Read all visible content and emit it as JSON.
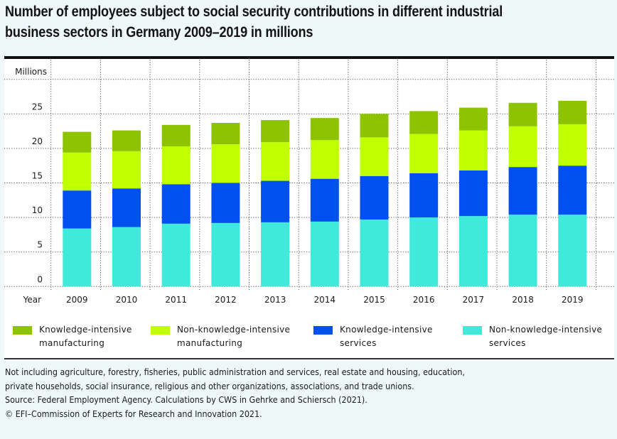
{
  "chart_data": {
    "type": "bar",
    "stacked": true,
    "title": "Number of employees subject to social security contributions in different industrial business sectors in Germany 2009–2019 in millions",
    "title_lines": [
      "Number of employees subject to social security contributions in different industrial",
      "business sectors in Germany 2009–2019 in millions"
    ],
    "ylabel": "Millions",
    "xlabel": "Year",
    "ylim": [
      0,
      30
    ],
    "yticks": [
      0,
      5,
      10,
      15,
      20,
      25
    ],
    "ytick_labels": [
      "0",
      "5",
      "10",
      "15",
      "20",
      "25"
    ],
    "grid": true,
    "legend_position": "bottom",
    "categories": [
      "2009",
      "2010",
      "2011",
      "2012",
      "2013",
      "2014",
      "2015",
      "2016",
      "2017",
      "2018",
      "2019"
    ],
    "series": [
      {
        "name": "Non-knowledge-intensive services",
        "legend_lines": [
          "Non-knowledge-intensive",
          "services"
        ],
        "color": "#40eada",
        "values": [
          8.4,
          8.6,
          9.1,
          9.2,
          9.3,
          9.4,
          9.7,
          10.0,
          10.2,
          10.4,
          10.4
        ]
      },
      {
        "name": "Knowledge-intensive services",
        "legend_lines": [
          "Knowledge-intensive",
          "services"
        ],
        "color": "#0050f0",
        "values": [
          5.5,
          5.6,
          5.7,
          5.8,
          6.0,
          6.2,
          6.3,
          6.4,
          6.6,
          6.9,
          7.1
        ]
      },
      {
        "name": "Non-knowledge-intensive manufacturing",
        "legend_lines": [
          "Non-knowledge-intensive",
          "manufacturing"
        ],
        "color": "#c0ff00",
        "values": [
          5.5,
          5.4,
          5.5,
          5.6,
          5.6,
          5.6,
          5.6,
          5.7,
          5.8,
          5.9,
          6.0
        ]
      },
      {
        "name": "Knowledge-intensive manufacturing",
        "legend_lines": [
          "Knowledge-intensive",
          "manufacturing"
        ],
        "color": "#8dc300",
        "values": [
          3.0,
          3.0,
          3.1,
          3.1,
          3.2,
          3.2,
          3.4,
          3.3,
          3.3,
          3.4,
          3.4
        ]
      }
    ],
    "legend_order": [
      3,
      2,
      1,
      0
    ]
  },
  "notes": [
    "Not including agriculture, forestry, fisheries, public administration and services, real estate and housing, education,",
    "private households, social insurance, religious and other organizations, associations, and trade unions.",
    "Source: Federal Employment Agency. Calculations by CWS in Gehrke and Schiersch (2021).",
    "© EFI–Commission of Experts for Research and Innovation 2021."
  ]
}
